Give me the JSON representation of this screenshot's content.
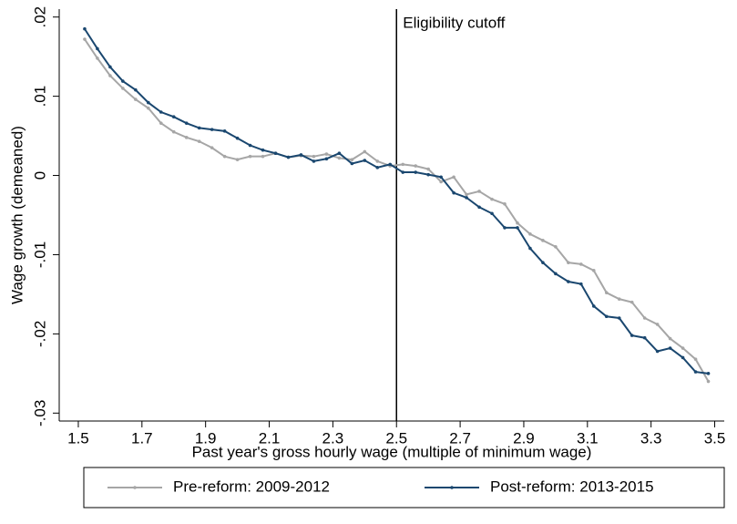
{
  "chart_data": {
    "type": "line",
    "xlabel": "Past year's gross hourly wage (multiple of minimum wage)",
    "ylabel": "Wage growth (demeaned)",
    "annotation": "Eligibility cutoff",
    "cutoff": 2.5,
    "x": [
      1.52,
      1.56,
      1.6,
      1.64,
      1.68,
      1.72,
      1.76,
      1.8,
      1.84,
      1.88,
      1.92,
      1.96,
      2.0,
      2.04,
      2.08,
      2.12,
      2.16,
      2.2,
      2.24,
      2.28,
      2.32,
      2.36,
      2.4,
      2.44,
      2.48,
      2.52,
      2.56,
      2.6,
      2.64,
      2.68,
      2.72,
      2.76,
      2.8,
      2.84,
      2.88,
      2.92,
      2.96,
      3.0,
      3.04,
      3.08,
      3.12,
      3.16,
      3.2,
      3.24,
      3.28,
      3.32,
      3.36,
      3.4,
      3.44,
      3.48
    ],
    "series": [
      {
        "name": "Pre-reform: 2009-2012",
        "color": "#a6a6a6",
        "values": [
          0.0172,
          0.0148,
          0.0126,
          0.011,
          0.0096,
          0.0085,
          0.0066,
          0.0055,
          0.0048,
          0.0043,
          0.0035,
          0.0024,
          0.002,
          0.0024,
          0.0024,
          0.0028,
          0.0023,
          0.0025,
          0.0024,
          0.0027,
          0.0022,
          0.002,
          0.003,
          0.0018,
          0.0012,
          0.0014,
          0.0012,
          0.0008,
          -0.0008,
          -0.0002,
          -0.0024,
          -0.002,
          -0.003,
          -0.0036,
          -0.006,
          -0.0074,
          -0.0082,
          -0.009,
          -0.011,
          -0.0112,
          -0.012,
          -0.0148,
          -0.0156,
          -0.016,
          -0.018,
          -0.0188,
          -0.0206,
          -0.0218,
          -0.0232,
          -0.026
        ]
      },
      {
        "name": "Post-reform: 2013-2015",
        "color": "#1a476f",
        "values": [
          0.0185,
          0.016,
          0.0137,
          0.0119,
          0.0108,
          0.0092,
          0.008,
          0.0074,
          0.0066,
          0.006,
          0.0058,
          0.0056,
          0.0047,
          0.0038,
          0.0032,
          0.0028,
          0.0023,
          0.0026,
          0.0018,
          0.0021,
          0.0028,
          0.0015,
          0.0019,
          0.001,
          0.0014,
          0.0004,
          0.0004,
          0.0001,
          -0.0002,
          -0.0022,
          -0.0028,
          -0.004,
          -0.0048,
          -0.0066,
          -0.0066,
          -0.0092,
          -0.011,
          -0.0124,
          -0.0134,
          -0.0137,
          -0.0165,
          -0.0178,
          -0.018,
          -0.0202,
          -0.0205,
          -0.0222,
          -0.0218,
          -0.023,
          -0.0248,
          -0.025
        ]
      }
    ],
    "xlim": [
      1.44,
      3.53
    ],
    "ylim": [
      -0.031,
      0.021
    ],
    "xticks": [
      1.5,
      1.7,
      1.9,
      2.1,
      2.3,
      2.5,
      2.7,
      2.9,
      3.1,
      3.3,
      3.5
    ],
    "yticks": [
      {
        "value": 0.02,
        "label": ".02"
      },
      {
        "value": 0.01,
        "label": ".01"
      },
      0,
      {
        "value": -0.01,
        "label": "-.01"
      },
      {
        "value": -0.02,
        "label": "-.02"
      },
      {
        "value": -0.03,
        "label": "-.03"
      }
    ],
    "legend": "bottom"
  }
}
